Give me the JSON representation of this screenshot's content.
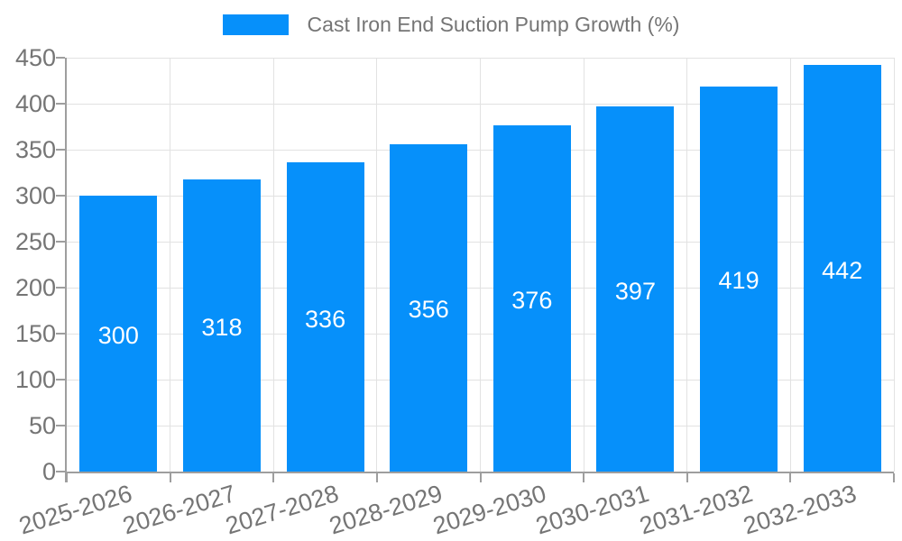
{
  "chart_data": {
    "type": "bar",
    "title": "Cast Iron End Suction Pump Growth (%)",
    "legend": {
      "position": "top",
      "items": [
        {
          "label": "Cast Iron End Suction Pump Growth (%)",
          "color": "#0690fa"
        }
      ]
    },
    "categories": [
      "2025-2026",
      "2026-2027",
      "2027-2028",
      "2028-2029",
      "2029-2030",
      "2030-2031",
      "2031-2032",
      "2032-2033"
    ],
    "series": [
      {
        "name": "Cast Iron End Suction Pump Growth (%)",
        "values": [
          300,
          318,
          336,
          356,
          376,
          397,
          419,
          442
        ]
      }
    ],
    "value_labels": [
      "300",
      "318",
      "336",
      "356",
      "376",
      "397",
      "419",
      "442"
    ],
    "xlabel": "",
    "ylabel": "",
    "ylim": [
      0,
      450
    ],
    "yticks": [
      0,
      50,
      100,
      150,
      200,
      250,
      300,
      350,
      400,
      450
    ],
    "grid": true,
    "colors": {
      "bar": "#0690fa",
      "grid": "#e2e2e2",
      "axis": "#9e9e9e",
      "tick_label": "#757575",
      "value_label": "#ffffff",
      "background": "#ffffff"
    }
  }
}
